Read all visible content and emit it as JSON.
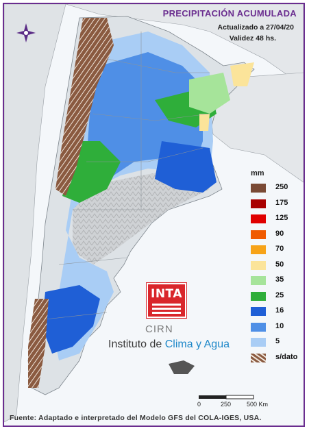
{
  "header": {
    "title": "PRECIPITACIÓN ACUMULADA",
    "updated": "Actualizado a 27/04/20",
    "validity": "Validez 48 hs."
  },
  "legend": {
    "unit": "mm",
    "items": [
      {
        "label": "250",
        "color": "#7a4a35"
      },
      {
        "label": "175",
        "color": "#a80000"
      },
      {
        "label": "125",
        "color": "#e00000"
      },
      {
        "label": "90",
        "color": "#f05a00"
      },
      {
        "label": "70",
        "color": "#f7a318"
      },
      {
        "label": "50",
        "color": "#fbe49a"
      },
      {
        "label": "35",
        "color": "#a6e49a"
      },
      {
        "label": "25",
        "color": "#2fae3a"
      },
      {
        "label": "16",
        "color": "#1f5fd6"
      },
      {
        "label": "10",
        "color": "#4f8fe6"
      },
      {
        "label": "5",
        "color": "#a9cdf5"
      },
      {
        "label": "s/dato",
        "color": "#8a5a40",
        "pattern": "hatched"
      }
    ]
  },
  "branding": {
    "inta": "INTA",
    "cirn": "CIRN",
    "institute_prefix": "Instituto de ",
    "institute_highlight": "Clima y Agua"
  },
  "scale": {
    "ticks": [
      "0",
      "250",
      "500 Km"
    ]
  },
  "footer": {
    "source": "Fuente: Adaptado e interpretado del Modelo GFS del COLA-IGES, USA."
  },
  "icons": {
    "compass": "compass-rose-icon"
  },
  "colors": {
    "frame": "#6a2d8f",
    "land": "#dde2e6",
    "sea": "#f4f7fa"
  }
}
